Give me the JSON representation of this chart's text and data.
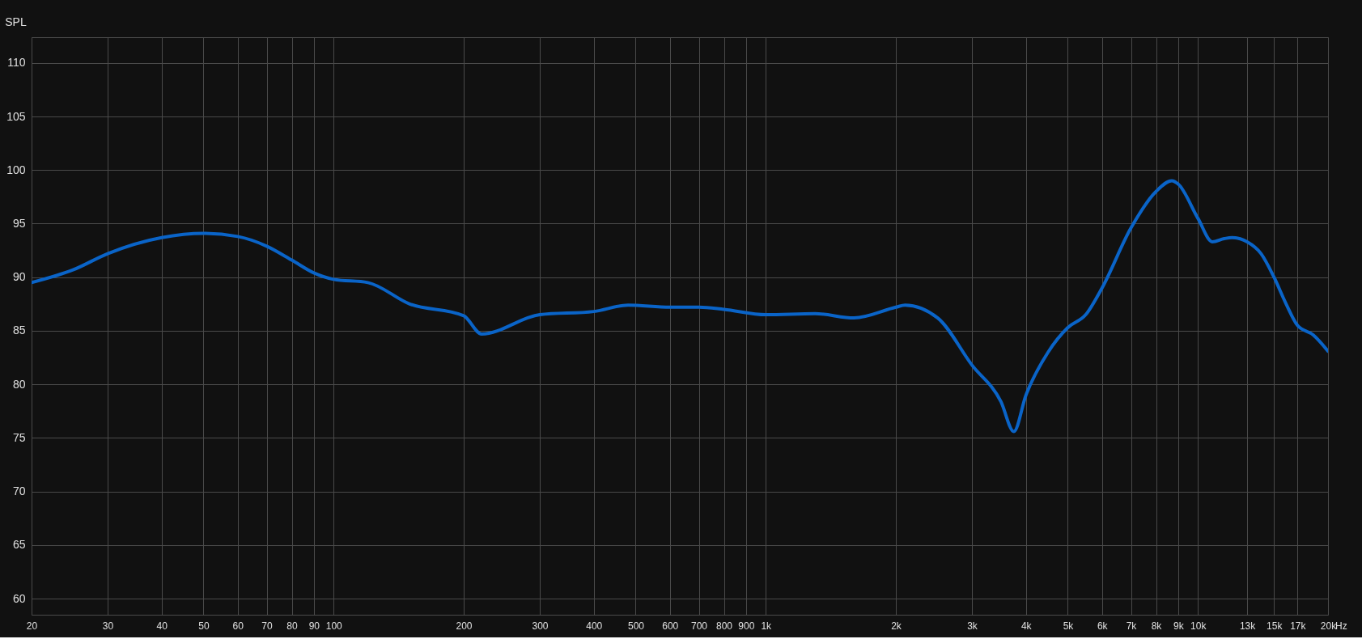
{
  "chart_data": {
    "type": "line",
    "ylabel": "SPL",
    "log": "x",
    "grid": true,
    "marker": "none",
    "line_style": "solid",
    "xlim": [
      20,
      20000
    ],
    "ylim": [
      58.5,
      112.4
    ],
    "xticks": [
      20,
      30,
      40,
      50,
      60,
      70,
      80,
      90,
      100,
      200,
      300,
      400,
      500,
      600,
      700,
      800,
      900,
      {
        "value": 1000,
        "label": "1k"
      },
      {
        "value": 2000,
        "label": "2k"
      },
      {
        "value": 3000,
        "label": "3k"
      },
      {
        "value": 4000,
        "label": "4k"
      },
      {
        "value": 5000,
        "label": "5k"
      },
      {
        "value": 6000,
        "label": "6k"
      },
      {
        "value": 7000,
        "label": "7k"
      },
      {
        "value": 8000,
        "label": "8k"
      },
      {
        "value": 9000,
        "label": "9k"
      },
      {
        "value": 10000,
        "label": "10k"
      },
      {
        "value": 13000,
        "label": "13k"
      },
      {
        "value": 15000,
        "label": "15k"
      },
      {
        "value": 17000,
        "label": "17k"
      },
      {
        "value": 20000,
        "label": "20k"
      }
    ],
    "xlabel": "Hz",
    "yticks": [
      60,
      65,
      70,
      75,
      80,
      85,
      90,
      95,
      100,
      105,
      110
    ],
    "series": [
      {
        "color": "#0a64c8",
        "x": [
          20,
          25,
          30,
          40,
          50,
          60,
          70,
          80,
          90,
          100,
          120,
          150,
          200,
          220,
          300,
          400,
          480,
          600,
          700,
          800,
          1000,
          1300,
          1600,
          2000,
          2100,
          2500,
          3000,
          3500,
          3750,
          4000,
          4500,
          5000,
          5500,
          6000,
          7000,
          8000,
          8700,
          9000,
          10000,
          10800,
          11500,
          12000,
          13000,
          14000,
          15000,
          16000,
          17000,
          18500,
          20000
        ],
        "values": [
          89.5,
          90.7,
          92.2,
          93.7,
          94.1,
          93.8,
          92.9,
          91.6,
          90.4,
          89.8,
          89.5,
          87.5,
          86.4,
          84.7,
          86.5,
          86.8,
          87.4,
          87.2,
          87.2,
          87.0,
          86.5,
          86.6,
          86.2,
          87.2,
          87.4,
          86.2,
          81.8,
          78.4,
          75.6,
          79.0,
          83.0,
          85.3,
          86.5,
          89.0,
          94.6,
          98.0,
          99.0,
          98.7,
          95.5,
          93.3,
          93.6,
          93.7,
          93.3,
          92.2,
          90.0,
          87.5,
          85.5,
          84.6,
          83.1
        ]
      }
    ]
  }
}
